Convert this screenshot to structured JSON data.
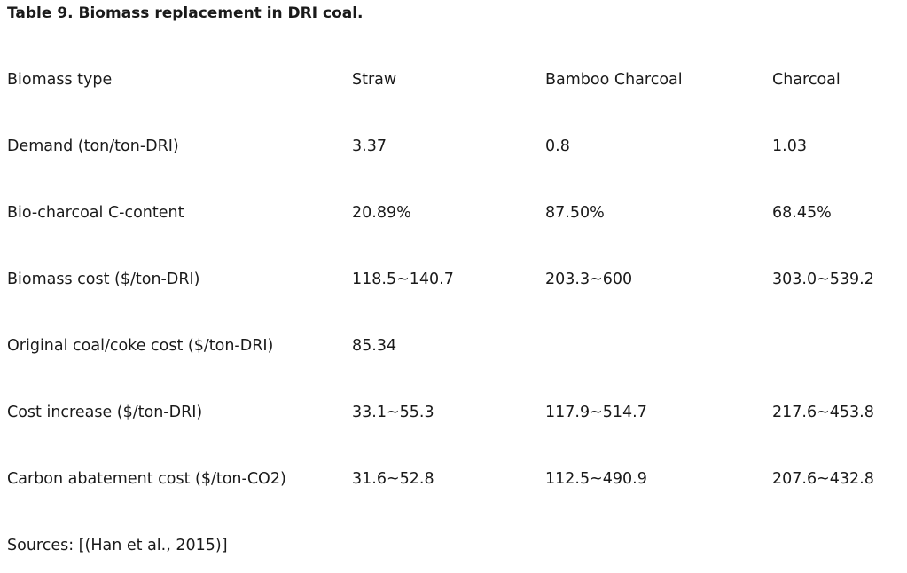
{
  "caption": "Table 9. Biomass replacement in DRI coal.",
  "table": {
    "header": [
      "Biomass type",
      "Straw",
      "Bamboo Charcoal",
      "Charcoal"
    ],
    "rows": [
      [
        "Demand (ton/ton-DRI)",
        "3.37",
        "0.8",
        "1.03"
      ],
      [
        "Bio-charcoal C-content",
        "20.89%",
        "87.50%",
        "68.45%"
      ],
      [
        "Biomass cost ($/ton-DRI)",
        "118.5~140.7",
        "203.3~600",
        "303.0~539.2"
      ],
      [
        "Original coal/coke cost ($/ton-DRI)",
        "85.34",
        "",
        ""
      ],
      [
        "Cost increase ($/ton-DRI)",
        "33.1~55.3",
        "117.9~514.7",
        "217.6~453.8"
      ],
      [
        "Carbon abatement cost ($/ton-CO2)",
        "31.6~52.8",
        "112.5~490.9",
        "207.6~432.8"
      ]
    ]
  },
  "sources": "Sources: [(Han et al., 2015)]"
}
